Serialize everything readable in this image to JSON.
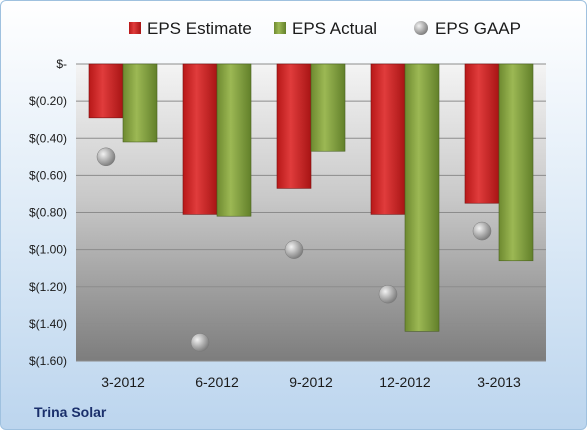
{
  "chart_data": {
    "type": "bar",
    "categories": [
      "3-2012",
      "6-2012",
      "9-2012",
      "12-2012",
      "3-2013"
    ],
    "series": [
      {
        "name": "EPS Estimate",
        "kind": "bar",
        "color": "#d42a2a",
        "values": [
          -0.29,
          -0.81,
          -0.67,
          -0.81,
          -0.75
        ]
      },
      {
        "name": "EPS Actual",
        "kind": "bar",
        "color": "#8aa646",
        "values": [
          -0.42,
          -0.82,
          -0.47,
          -1.44,
          -1.06
        ]
      },
      {
        "name": "EPS GAAP",
        "kind": "marker",
        "color": "#a8a8a8",
        "values": [
          -0.5,
          -1.5,
          -1.0,
          -1.24,
          -0.9
        ]
      }
    ],
    "ylim": [
      -1.6,
      0
    ],
    "yticks": [
      "$-",
      "$(0.20)",
      "$(0.40)",
      "$(0.60)",
      "$(0.80)",
      "$(1.00)",
      "$(1.20)",
      "$(1.40)",
      "$(1.60)"
    ],
    "ytick_values": [
      0,
      -0.2,
      -0.4,
      -0.6,
      -0.8,
      -1.0,
      -1.2,
      -1.4,
      -1.6
    ],
    "grid": true,
    "legend_position": "top"
  },
  "footer": {
    "company": "Trina Solar"
  }
}
